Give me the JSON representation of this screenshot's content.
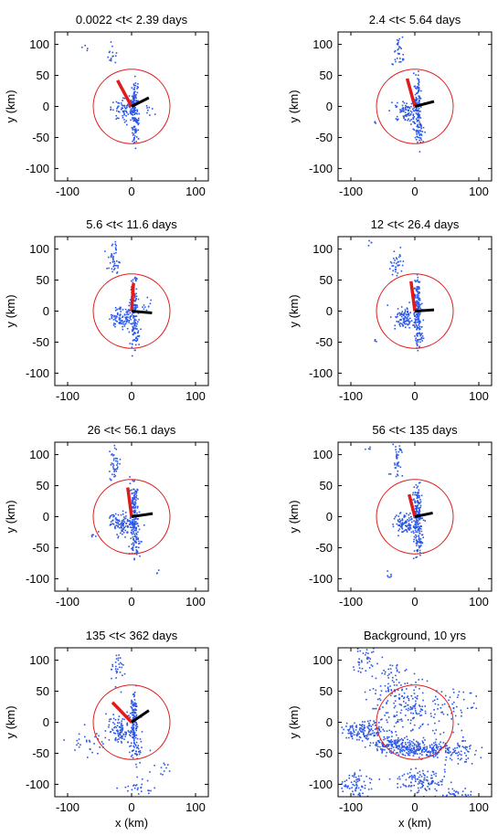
{
  "figure": {
    "ylabel": "y (km)",
    "xlabel": "x (km)",
    "circle_radius_km": 60,
    "colors": {
      "points": "#2b57e8",
      "circle": "#e02020",
      "red_segment": "#e01b1b",
      "black_segment": "#000000"
    }
  },
  "chart_data": [
    {
      "type": "scatter",
      "title": "0.0022 <t< 2.39 days",
      "xlim": [
        -120,
        120
      ],
      "ylim": [
        -120,
        120
      ],
      "xticks": [
        -100,
        0,
        100
      ],
      "yticks": [
        100,
        50,
        0,
        -50,
        -100
      ],
      "red_segment": [
        [
          0,
          0
        ],
        [
          -22,
          42
        ]
      ],
      "black_segment": [
        [
          0,
          0
        ],
        [
          27,
          14
        ]
      ],
      "clusters": [
        {
          "x": 4,
          "y": 5,
          "sx": 3,
          "sy": 20,
          "n": 120
        },
        {
          "x": -12,
          "y": -5,
          "sx": 10,
          "sy": 8,
          "n": 70
        },
        {
          "x": 6,
          "y": -40,
          "sx": 4,
          "sy": 12,
          "n": 40
        },
        {
          "x": -30,
          "y": 80,
          "sx": 4,
          "sy": 8,
          "n": 15
        },
        {
          "x": -75,
          "y": 95,
          "sx": 3,
          "sy": 3,
          "n": 4
        },
        {
          "x": 28,
          "y": -10,
          "sx": 6,
          "sy": 6,
          "n": 8
        }
      ]
    },
    {
      "type": "scatter",
      "title": "2.4 <t< 5.64 days",
      "xlim": [
        -120,
        120
      ],
      "ylim": [
        -120,
        120
      ],
      "xticks": [
        -100,
        0,
        100
      ],
      "yticks": [
        100,
        50,
        0,
        -50,
        -100
      ],
      "red_segment": [
        [
          0,
          0
        ],
        [
          -12,
          45
        ]
      ],
      "black_segment": [
        [
          0,
          0
        ],
        [
          30,
          8
        ]
      ],
      "clusters": [
        {
          "x": 4,
          "y": 5,
          "sx": 3,
          "sy": 22,
          "n": 120
        },
        {
          "x": -12,
          "y": -8,
          "sx": 9,
          "sy": 8,
          "n": 80
        },
        {
          "x": 6,
          "y": -40,
          "sx": 4,
          "sy": 12,
          "n": 40
        },
        {
          "x": -28,
          "y": 80,
          "sx": 5,
          "sy": 10,
          "n": 25
        },
        {
          "x": -25,
          "y": 105,
          "sx": 3,
          "sy": 4,
          "n": 6
        },
        {
          "x": -60,
          "y": -25,
          "sx": 3,
          "sy": 3,
          "n": 3
        }
      ]
    },
    {
      "type": "scatter",
      "title": "5.6 <t< 11.6 days",
      "xlim": [
        -120,
        120
      ],
      "ylim": [
        -120,
        120
      ],
      "xticks": [
        -100,
        0,
        100
      ],
      "yticks": [
        100,
        50,
        0,
        -50,
        -100
      ],
      "red_segment": [
        [
          0,
          0
        ],
        [
          3,
          45
        ]
      ],
      "black_segment": [
        [
          0,
          0
        ],
        [
          32,
          -3
        ]
      ],
      "clusters": [
        {
          "x": 4,
          "y": 8,
          "sx": 3,
          "sy": 22,
          "n": 130
        },
        {
          "x": -14,
          "y": -10,
          "sx": 9,
          "sy": 9,
          "n": 90
        },
        {
          "x": 6,
          "y": -40,
          "sx": 4,
          "sy": 12,
          "n": 45
        },
        {
          "x": -28,
          "y": 80,
          "sx": 5,
          "sy": 12,
          "n": 35
        },
        {
          "x": -25,
          "y": 105,
          "sx": 3,
          "sy": 4,
          "n": 8
        },
        {
          "x": 25,
          "y": 10,
          "sx": 6,
          "sy": 6,
          "n": 10
        }
      ]
    },
    {
      "type": "scatter",
      "title": "12 <t< 26.4 days",
      "xlim": [
        -120,
        120
      ],
      "ylim": [
        -120,
        120
      ],
      "xticks": [
        -100,
        0,
        100
      ],
      "yticks": [
        100,
        50,
        0,
        -50,
        -100
      ],
      "red_segment": [
        [
          0,
          0
        ],
        [
          -6,
          48
        ]
      ],
      "black_segment": [
        [
          0,
          0
        ],
        [
          30,
          2
        ]
      ],
      "clusters": [
        {
          "x": 4,
          "y": 8,
          "sx": 3,
          "sy": 24,
          "n": 140
        },
        {
          "x": -14,
          "y": -10,
          "sx": 10,
          "sy": 9,
          "n": 100
        },
        {
          "x": 6,
          "y": -40,
          "sx": 4,
          "sy": 12,
          "n": 45
        },
        {
          "x": -28,
          "y": 80,
          "sx": 5,
          "sy": 12,
          "n": 35
        },
        {
          "x": -70,
          "y": 110,
          "sx": 3,
          "sy": 3,
          "n": 4
        },
        {
          "x": -60,
          "y": -50,
          "sx": 3,
          "sy": 3,
          "n": 3
        }
      ]
    },
    {
      "type": "scatter",
      "title": "26 <t< 56.1 days",
      "xlim": [
        -120,
        120
      ],
      "ylim": [
        -120,
        120
      ],
      "xticks": [
        -100,
        0,
        100
      ],
      "yticks": [
        100,
        50,
        0,
        -50,
        -100
      ],
      "red_segment": [
        [
          0,
          0
        ],
        [
          -6,
          47
        ]
      ],
      "black_segment": [
        [
          0,
          0
        ],
        [
          33,
          5
        ]
      ],
      "clusters": [
        {
          "x": 4,
          "y": 8,
          "sx": 3,
          "sy": 24,
          "n": 150
        },
        {
          "x": -14,
          "y": -10,
          "sx": 10,
          "sy": 9,
          "n": 110
        },
        {
          "x": 6,
          "y": -42,
          "sx": 4,
          "sy": 12,
          "n": 50
        },
        {
          "x": -28,
          "y": 85,
          "sx": 5,
          "sy": 14,
          "n": 40
        },
        {
          "x": -60,
          "y": -30,
          "sx": 5,
          "sy": 4,
          "n": 6
        },
        {
          "x": 40,
          "y": -90,
          "sx": 3,
          "sy": 3,
          "n": 3
        }
      ]
    },
    {
      "type": "scatter",
      "title": "56 <t< 135 days",
      "xlim": [
        -120,
        120
      ],
      "ylim": [
        -120,
        120
      ],
      "xticks": [
        -100,
        0,
        100
      ],
      "yticks": [
        100,
        50,
        0,
        -50,
        -100
      ],
      "red_segment": [
        [
          0,
          0
        ],
        [
          -9,
          36
        ]
      ],
      "black_segment": [
        [
          0,
          0
        ],
        [
          28,
          6
        ]
      ],
      "clusters": [
        {
          "x": 4,
          "y": 8,
          "sx": 3,
          "sy": 24,
          "n": 150
        },
        {
          "x": -14,
          "y": -10,
          "sx": 10,
          "sy": 9,
          "n": 110
        },
        {
          "x": 6,
          "y": -42,
          "sx": 4,
          "sy": 12,
          "n": 50
        },
        {
          "x": -28,
          "y": 85,
          "sx": 5,
          "sy": 14,
          "n": 40
        },
        {
          "x": -40,
          "y": -95,
          "sx": 4,
          "sy": 4,
          "n": 6
        },
        {
          "x": -70,
          "y": 110,
          "sx": 3,
          "sy": 3,
          "n": 4
        }
      ]
    },
    {
      "type": "scatter",
      "title": "135 <t< 362 days",
      "xlim": [
        -120,
        120
      ],
      "ylim": [
        -120,
        120
      ],
      "xticks": [
        -100,
        0,
        100
      ],
      "yticks": [
        100,
        50,
        0,
        -50,
        -100
      ],
      "red_segment": [
        [
          0,
          0
        ],
        [
          -30,
          32
        ]
      ],
      "black_segment": [
        [
          0,
          0
        ],
        [
          27,
          19
        ]
      ],
      "clusters": [
        {
          "x": 4,
          "y": 8,
          "sx": 3,
          "sy": 22,
          "n": 120
        },
        {
          "x": -16,
          "y": -12,
          "sx": 12,
          "sy": 11,
          "n": 110
        },
        {
          "x": 6,
          "y": -42,
          "sx": 5,
          "sy": 12,
          "n": 45
        },
        {
          "x": -20,
          "y": 85,
          "sx": 6,
          "sy": 12,
          "n": 30
        },
        {
          "x": -70,
          "y": -30,
          "sx": 15,
          "sy": 10,
          "n": 30
        },
        {
          "x": 10,
          "y": -105,
          "sx": 12,
          "sy": 6,
          "n": 25
        },
        {
          "x": 50,
          "y": -70,
          "sx": 8,
          "sy": 8,
          "n": 12
        }
      ]
    },
    {
      "type": "scatter",
      "title": "Background, 10 yrs",
      "xlim": [
        -120,
        120
      ],
      "ylim": [
        -120,
        120
      ],
      "xticks": [
        -100,
        0,
        100
      ],
      "yticks": [
        100,
        50,
        0,
        -50,
        -100
      ],
      "red_segment": null,
      "black_segment": null,
      "clusters": [
        {
          "x": -80,
          "y": -15,
          "sx": 18,
          "sy": 8,
          "n": 130
        },
        {
          "x": -40,
          "y": -35,
          "sx": 14,
          "sy": 8,
          "n": 110
        },
        {
          "x": -5,
          "y": -42,
          "sx": 14,
          "sy": 6,
          "n": 140
        },
        {
          "x": 30,
          "y": -45,
          "sx": 12,
          "sy": 7,
          "n": 80
        },
        {
          "x": 70,
          "y": -50,
          "sx": 12,
          "sy": 10,
          "n": 60
        },
        {
          "x": 10,
          "y": -95,
          "sx": 20,
          "sy": 10,
          "n": 120
        },
        {
          "x": -90,
          "y": -100,
          "sx": 12,
          "sy": 10,
          "n": 70
        },
        {
          "x": -10,
          "y": 15,
          "sx": 30,
          "sy": 20,
          "n": 160
        },
        {
          "x": -80,
          "y": 100,
          "sx": 10,
          "sy": 10,
          "n": 40
        },
        {
          "x": -30,
          "y": 60,
          "sx": 20,
          "sy": 18,
          "n": 80
        },
        {
          "x": 60,
          "y": 30,
          "sx": 20,
          "sy": 15,
          "n": 40
        },
        {
          "x": 70,
          "y": -115,
          "sx": 12,
          "sy": 5,
          "n": 30
        }
      ]
    }
  ]
}
